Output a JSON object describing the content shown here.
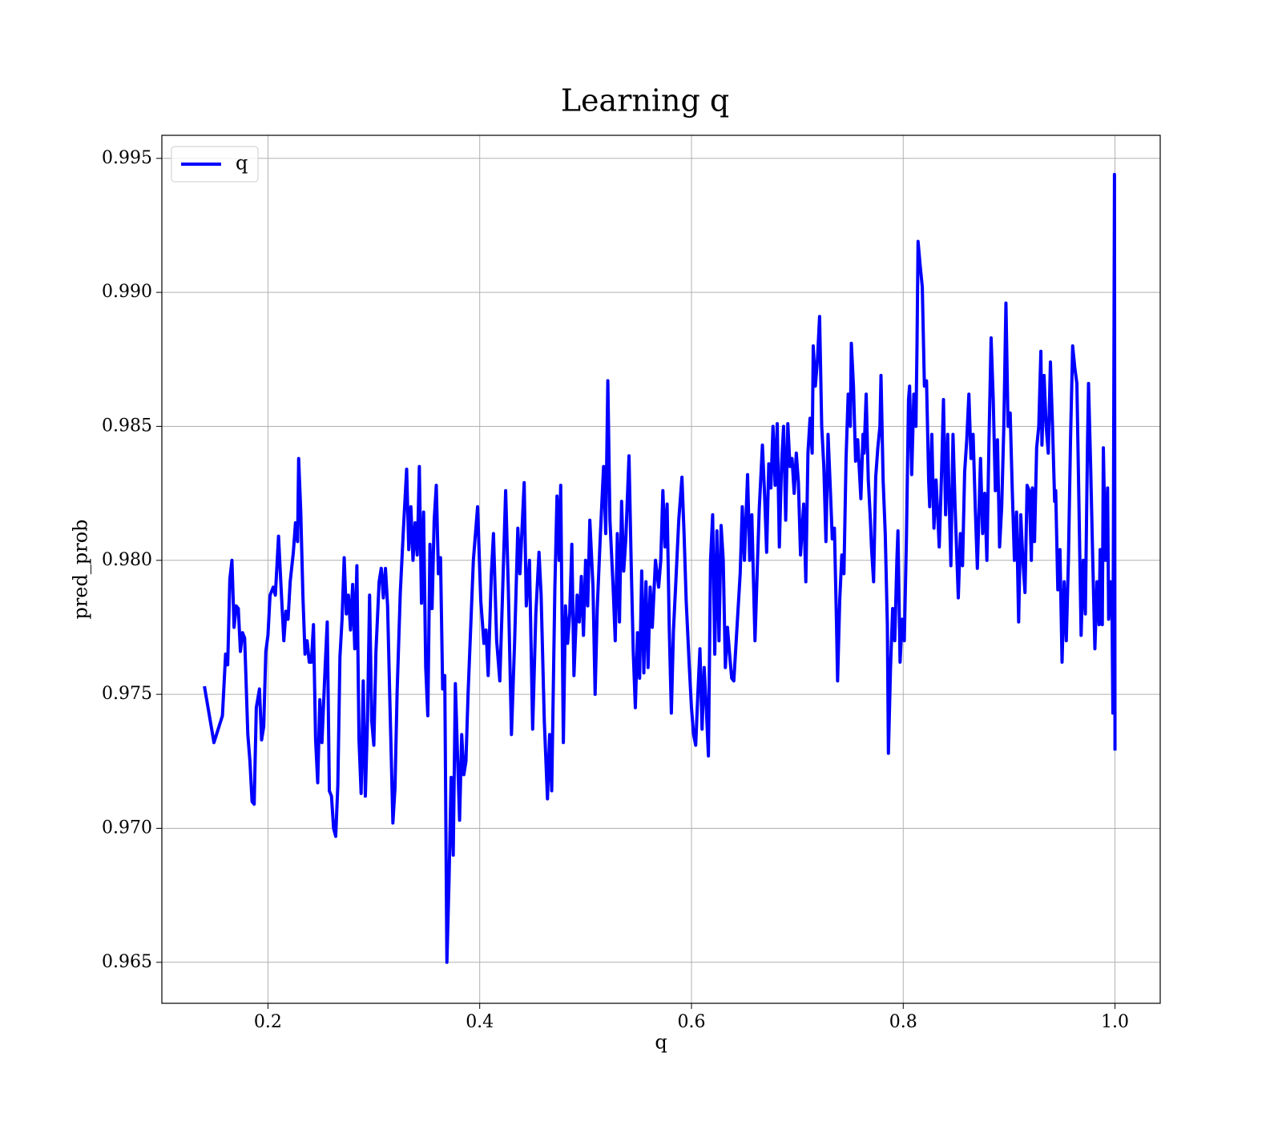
{
  "chart_data": {
    "type": "line",
    "title": "Learning q",
    "xlabel": "q",
    "ylabel": "pred_prob",
    "xlim": [
      0.0998,
      1.0427
    ],
    "ylim": [
      0.96347,
      0.99586
    ],
    "xticks": [
      0.2,
      0.4,
      0.6,
      0.8,
      {
        "value": 1,
        "label": "1.0"
      }
    ],
    "yticks": [
      0.965,
      {
        "value": 0.97,
        "label": "0.970"
      },
      0.975,
      {
        "value": 0.98,
        "label": "0.980"
      },
      0.985,
      {
        "value": 0.99,
        "label": "0.990"
      },
      0.995
    ],
    "grid": true,
    "legend": "upper left",
    "x": [
      0.14,
      0.149,
      0.157,
      0.16,
      0.162,
      0.164,
      0.166,
      0.168,
      0.17,
      0.172,
      0.174,
      0.176,
      0.178,
      0.181,
      0.183,
      0.185,
      0.187,
      0.189,
      0.192,
      0.194,
      0.196,
      0.198,
      0.2,
      0.202,
      0.205,
      0.207,
      0.21,
      0.212,
      0.215,
      0.217,
      0.219,
      0.221,
      0.224,
      0.226,
      0.228,
      0.229,
      0.231,
      0.233,
      0.235,
      0.237,
      0.239,
      0.241,
      0.243,
      0.245,
      0.247,
      0.249,
      0.251,
      0.254,
      0.256,
      0.258,
      0.26,
      0.262,
      0.264,
      0.266,
      0.268,
      0.27,
      0.272,
      0.274,
      0.276,
      0.278,
      0.28,
      0.282,
      0.284,
      0.286,
      0.288,
      0.29,
      0.292,
      0.294,
      0.296,
      0.298,
      0.3,
      0.302,
      0.305,
      0.307,
      0.309,
      0.311,
      0.313,
      0.315,
      0.318,
      0.32,
      0.322,
      0.325,
      0.328,
      0.331,
      0.333,
      0.335,
      0.337,
      0.339,
      0.341,
      0.343,
      0.345,
      0.347,
      0.349,
      0.351,
      0.353,
      0.355,
      0.357,
      0.359,
      0.361,
      0.363,
      0.365,
      0.367,
      0.369,
      0.371,
      0.373,
      0.375,
      0.377,
      0.379,
      0.381,
      0.383,
      0.385,
      0.387,
      0.389,
      0.394,
      0.398,
      0.401,
      0.404,
      0.406,
      0.408,
      0.411,
      0.413,
      0.416,
      0.419,
      0.421,
      0.4245,
      0.427,
      0.43,
      0.433,
      0.436,
      0.438,
      0.442,
      0.444,
      0.447,
      0.45,
      0.453,
      0.456,
      0.458,
      0.461,
      0.464,
      0.466,
      0.468,
      0.471,
      0.473,
      0.475,
      0.4765,
      0.479,
      0.481,
      0.483,
      0.485,
      0.487,
      0.489,
      0.492,
      0.494,
      0.496,
      0.498,
      0.5,
      0.502,
      0.504,
      0.507,
      0.509,
      0.511,
      0.514,
      0.517,
      0.519,
      0.521,
      0.523,
      0.526,
      0.528,
      0.53,
      0.532,
      0.534,
      0.536,
      0.538,
      0.541,
      0.543,
      0.545,
      0.547,
      0.549,
      0.551,
      0.553,
      0.555,
      0.557,
      0.559,
      0.561,
      0.563,
      0.566,
      0.569,
      0.571,
      0.573,
      0.575,
      0.577,
      0.579,
      0.581,
      0.583,
      0.585,
      0.588,
      0.591,
      0.593,
      0.595,
      0.598,
      0.6,
      0.602,
      0.604,
      0.606,
      0.608,
      0.61,
      0.612,
      0.614,
      0.616,
      0.618,
      0.62,
      0.622,
      0.624,
      0.626,
      0.628,
      0.63,
      0.632,
      0.634,
      0.636,
      0.638,
      0.64,
      0.643,
      0.646,
      0.648,
      0.65,
      0.653,
      0.655,
      0.657,
      0.66,
      0.662,
      0.664,
      0.667,
      0.669,
      0.671,
      0.673,
      0.675,
      0.677,
      0.679,
      0.681,
      0.683,
      0.685,
      0.687,
      0.689,
      0.691,
      0.693,
      0.695,
      0.697,
      0.699,
      0.701,
      0.703,
      0.706,
      0.708,
      0.71,
      0.712,
      0.714,
      0.715,
      0.717,
      0.719,
      0.721,
      0.723,
      0.725,
      0.727,
      0.729,
      0.731,
      0.733,
      0.735,
      0.737,
      0.738,
      0.74,
      0.742,
      0.744,
      0.746,
      0.748,
      0.75,
      0.751,
      0.753,
      0.755,
      0.757,
      0.76,
      0.762,
      0.763,
      0.765,
      0.767,
      0.769,
      0.77,
      0.772,
      0.774,
      0.776,
      0.778,
      0.779,
      0.781,
      0.783,
      0.785,
      0.786,
      0.788,
      0.79,
      0.792,
      0.794,
      0.795,
      0.797,
      0.799,
      0.801,
      0.803,
      0.805,
      0.806,
      0.808,
      0.81,
      0.812,
      0.813,
      0.814,
      0.816,
      0.818,
      0.82,
      0.822,
      0.824,
      0.825,
      0.827,
      0.829,
      0.831,
      0.834,
      0.836,
      0.838,
      0.84,
      0.842,
      0.843,
      0.845,
      0.847,
      0.849,
      0.852,
      0.854,
      0.856,
      0.858,
      0.86,
      0.862,
      0.864,
      0.866,
      0.868,
      0.87,
      0.873,
      0.875,
      0.877,
      0.879,
      0.881,
      0.883,
      0.885,
      0.887,
      0.889,
      0.891,
      0.893,
      0.895,
      0.897,
      0.899,
      0.901,
      0.903,
      0.905,
      0.907,
      0.909,
      0.911,
      0.913,
      0.915,
      0.917,
      0.919,
      0.921,
      0.922,
      0.924,
      0.926,
      0.928,
      0.93,
      0.931,
      0.933,
      0.935,
      0.937,
      0.939,
      0.941,
      0.943,
      0.944,
      0.946,
      0.948,
      0.95,
      0.952,
      0.954,
      0.956,
      0.958,
      0.96,
      0.962,
      0.964,
      0.966,
      0.968,
      0.97,
      0.972,
      0.974,
      0.975,
      0.977,
      0.979,
      0.981,
      0.983,
      0.985,
      0.986,
      0.988,
      0.989,
      0.991,
      0.993,
      0.994,
      0.996,
      0.997,
      0.998,
      0.9995,
      1
    ],
    "series": [
      {
        "name": "q",
        "color": "#0000ff",
        "values": [
          0.9753,
          0.9732,
          0.9742,
          0.9765,
          0.9761,
          0.9793,
          0.98,
          0.9775,
          0.9783,
          0.9782,
          0.9766,
          0.9773,
          0.9771,
          0.9735,
          0.9725,
          0.971,
          0.9709,
          0.9745,
          0.9752,
          0.9733,
          0.9738,
          0.9766,
          0.9772,
          0.9787,
          0.979,
          0.9787,
          0.9809,
          0.9793,
          0.977,
          0.9781,
          0.9778,
          0.9792,
          0.9803,
          0.9814,
          0.9807,
          0.9838,
          0.9818,
          0.9787,
          0.9765,
          0.977,
          0.9762,
          0.9762,
          0.9776,
          0.9733,
          0.9717,
          0.9748,
          0.9732,
          0.976,
          0.9777,
          0.9714,
          0.9712,
          0.97,
          0.9697,
          0.9716,
          0.9764,
          0.9778,
          0.9801,
          0.978,
          0.9787,
          0.9774,
          0.9791,
          0.9767,
          0.9798,
          0.9733,
          0.9713,
          0.9755,
          0.9712,
          0.974,
          0.9787,
          0.974,
          0.9731,
          0.9766,
          0.9792,
          0.9797,
          0.9786,
          0.9797,
          0.9783,
          0.975,
          0.9702,
          0.9715,
          0.9751,
          0.9788,
          0.9812,
          0.9834,
          0.9804,
          0.982,
          0.98,
          0.9814,
          0.9802,
          0.9835,
          0.9784,
          0.9818,
          0.976,
          0.9742,
          0.9806,
          0.9782,
          0.9815,
          0.9828,
          0.9795,
          0.9801,
          0.9752,
          0.9757,
          0.965,
          0.968,
          0.9719,
          0.969,
          0.9754,
          0.9728,
          0.9703,
          0.9735,
          0.972,
          0.9725,
          0.975,
          0.98,
          0.982,
          0.9785,
          0.9769,
          0.9774,
          0.9757,
          0.9795,
          0.981,
          0.977,
          0.9755,
          0.978,
          0.9826,
          0.979,
          0.9735,
          0.977,
          0.9812,
          0.9795,
          0.9829,
          0.9783,
          0.98,
          0.9737,
          0.978,
          0.9803,
          0.9787,
          0.974,
          0.9711,
          0.9735,
          0.9714,
          0.979,
          0.9824,
          0.98,
          0.9828,
          0.9732,
          0.9783,
          0.9769,
          0.978,
          0.9806,
          0.9757,
          0.9787,
          0.9777,
          0.9794,
          0.9772,
          0.98,
          0.9783,
          0.9815,
          0.979,
          0.975,
          0.9782,
          0.981,
          0.9835,
          0.981,
          0.9867,
          0.9815,
          0.979,
          0.977,
          0.981,
          0.9777,
          0.9822,
          0.9796,
          0.9808,
          0.9839,
          0.98,
          0.9766,
          0.9745,
          0.9773,
          0.9756,
          0.9796,
          0.9758,
          0.9792,
          0.976,
          0.979,
          0.9775,
          0.98,
          0.979,
          0.98,
          0.9826,
          0.9805,
          0.9821,
          0.9775,
          0.9743,
          0.9774,
          0.979,
          0.9815,
          0.9831,
          0.981,
          0.9785,
          0.976,
          0.9745,
          0.9735,
          0.9731,
          0.975,
          0.9767,
          0.9737,
          0.976,
          0.9745,
          0.9727,
          0.98,
          0.9817,
          0.9765,
          0.9811,
          0.977,
          0.9813,
          0.98,
          0.976,
          0.9775,
          0.9765,
          0.9756,
          0.9755,
          0.9775,
          0.9795,
          0.982,
          0.98,
          0.9832,
          0.98,
          0.9817,
          0.977,
          0.9795,
          0.9819,
          0.9843,
          0.9825,
          0.9803,
          0.9836,
          0.9827,
          0.985,
          0.9828,
          0.9851,
          0.9805,
          0.9835,
          0.985,
          0.9815,
          0.9851,
          0.9835,
          0.9838,
          0.9825,
          0.984,
          0.9829,
          0.9802,
          0.9821,
          0.9792,
          0.984,
          0.9853,
          0.984,
          0.988,
          0.9865,
          0.9875,
          0.9891,
          0.985,
          0.9835,
          0.9807,
          0.9847,
          0.9828,
          0.9808,
          0.9812,
          0.9776,
          0.9755,
          0.9785,
          0.9802,
          0.9795,
          0.9838,
          0.9862,
          0.985,
          0.9881,
          0.9865,
          0.9837,
          0.9845,
          0.9823,
          0.9847,
          0.984,
          0.9862,
          0.983,
          0.9815,
          0.9805,
          0.9792,
          0.9831,
          0.9842,
          0.985,
          0.9869,
          0.983,
          0.981,
          0.9776,
          0.9728,
          0.976,
          0.9782,
          0.977,
          0.98,
          0.9811,
          0.9762,
          0.9778,
          0.977,
          0.9808,
          0.986,
          0.9865,
          0.9832,
          0.9862,
          0.985,
          0.988,
          0.9919,
          0.991,
          0.9902,
          0.9865,
          0.9867,
          0.983,
          0.982,
          0.9847,
          0.9812,
          0.983,
          0.9805,
          0.983,
          0.986,
          0.9817,
          0.9847,
          0.9828,
          0.9798,
          0.9847,
          0.982,
          0.9786,
          0.981,
          0.9798,
          0.9833,
          0.9845,
          0.9862,
          0.9838,
          0.9847,
          0.982,
          0.9797,
          0.9838,
          0.981,
          0.9825,
          0.98,
          0.9845,
          0.9883,
          0.986,
          0.9826,
          0.9845,
          0.9805,
          0.982,
          0.985,
          0.9896,
          0.985,
          0.9855,
          0.9826,
          0.98,
          0.9818,
          0.9777,
          0.9817,
          0.98,
          0.9788,
          0.9828,
          0.9826,
          0.98,
          0.9827,
          0.9807,
          0.9842,
          0.985,
          0.9878,
          0.9843,
          0.9869,
          0.985,
          0.984,
          0.9874,
          0.985,
          0.9822,
          0.9826,
          0.9789,
          0.9804,
          0.9762,
          0.9792,
          0.977,
          0.98,
          0.9845,
          0.988,
          0.9872,
          0.9866,
          0.982,
          0.9772,
          0.98,
          0.978,
          0.9843,
          0.9866,
          0.9835,
          0.98,
          0.9767,
          0.9792,
          0.9776,
          0.9804,
          0.9776,
          0.9842,
          0.98,
          0.9827,
          0.9778,
          0.9792,
          0.979,
          0.9743,
          0.9944,
          0.9729
        ]
      }
    ]
  }
}
